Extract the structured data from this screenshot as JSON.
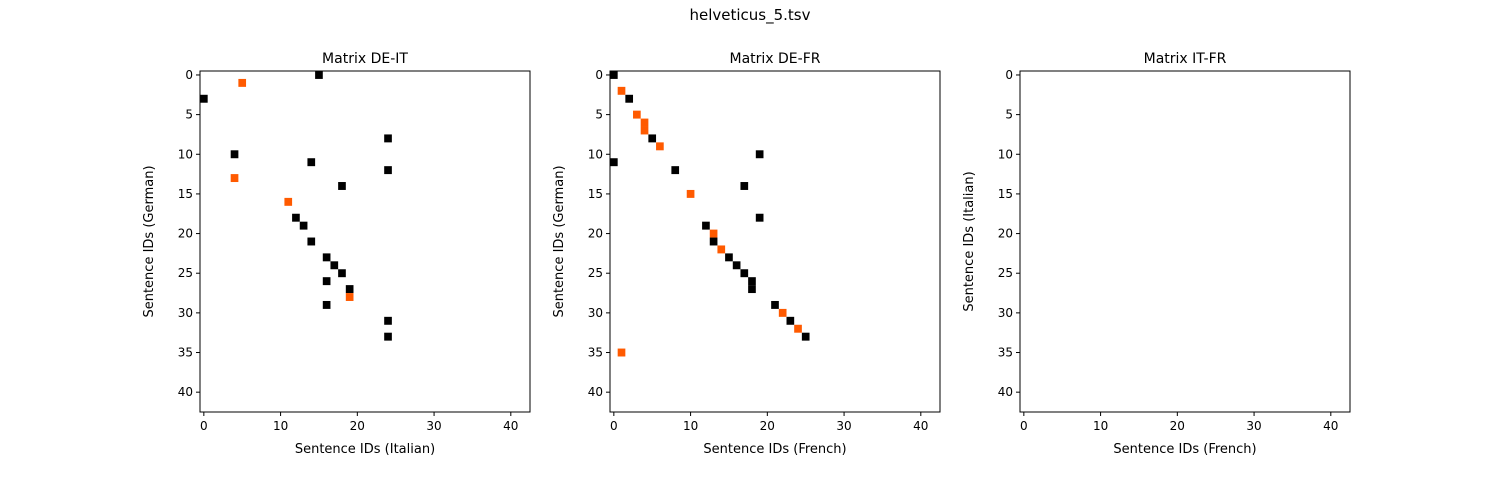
{
  "figure": {
    "title": "helveticus_5.tsv"
  },
  "colors": {
    "black": "#000000",
    "orange": "#ff5a00",
    "axis": "#000000",
    "background": "#ffffff"
  },
  "chart_data": [
    {
      "type": "scatter",
      "title": "Matrix DE-IT",
      "xlabel": "Sentence IDs (Italian)",
      "ylabel": "Sentence IDs (German)",
      "xlim": [
        -0.5,
        42.5
      ],
      "ylim": [
        42.5,
        -0.5
      ],
      "xticks": [
        0,
        10,
        20,
        30,
        40
      ],
      "yticks": [
        0,
        5,
        10,
        15,
        20,
        25,
        30,
        35,
        40
      ],
      "grid": false,
      "series": [
        {
          "color": "black",
          "points": [
            [
              15,
              0
            ],
            [
              0,
              3
            ],
            [
              24,
              8
            ],
            [
              4,
              10
            ],
            [
              14,
              11
            ],
            [
              24,
              12
            ],
            [
              18,
              14
            ],
            [
              12,
              18
            ],
            [
              13,
              19
            ],
            [
              14,
              21
            ],
            [
              16,
              23
            ],
            [
              17,
              24
            ],
            [
              18,
              25
            ],
            [
              16,
              26
            ],
            [
              19,
              27
            ],
            [
              16,
              29
            ],
            [
              24,
              31
            ],
            [
              24,
              33
            ]
          ]
        },
        {
          "color": "orange",
          "points": [
            [
              5,
              1
            ],
            [
              4,
              13
            ],
            [
              11,
              16
            ],
            [
              19,
              28
            ]
          ]
        }
      ]
    },
    {
      "type": "scatter",
      "title": "Matrix DE-FR",
      "xlabel": "Sentence IDs (French)",
      "ylabel": "Sentence IDs (German)",
      "xlim": [
        -0.5,
        42.5
      ],
      "ylim": [
        42.5,
        -0.5
      ],
      "xticks": [
        0,
        10,
        20,
        30,
        40
      ],
      "yticks": [
        0,
        5,
        10,
        15,
        20,
        25,
        30,
        35,
        40
      ],
      "grid": false,
      "series": [
        {
          "color": "black",
          "points": [
            [
              0,
              0
            ],
            [
              2,
              3
            ],
            [
              5,
              8
            ],
            [
              19,
              10
            ],
            [
              0,
              11
            ],
            [
              8,
              12
            ],
            [
              17,
              14
            ],
            [
              19,
              18
            ],
            [
              12,
              19
            ],
            [
              13,
              21
            ],
            [
              15,
              23
            ],
            [
              16,
              24
            ],
            [
              17,
              25
            ],
            [
              18,
              26
            ],
            [
              18,
              27
            ],
            [
              21,
              29
            ],
            [
              23,
              31
            ],
            [
              25,
              33
            ]
          ]
        },
        {
          "color": "orange",
          "points": [
            [
              1,
              2
            ],
            [
              3,
              5
            ],
            [
              4,
              6
            ],
            [
              4,
              7
            ],
            [
              6,
              9
            ],
            [
              10,
              15
            ],
            [
              13,
              20
            ],
            [
              14,
              22
            ],
            [
              22,
              30
            ],
            [
              24,
              32
            ],
            [
              1,
              35
            ]
          ]
        }
      ]
    },
    {
      "type": "scatter",
      "title": "Matrix IT-FR",
      "xlabel": "Sentence IDs (French)",
      "ylabel": "Sentence IDs (Italian)",
      "xlim": [
        -0.5,
        42.5
      ],
      "ylim": [
        42.5,
        -0.5
      ],
      "xticks": [
        0,
        10,
        20,
        30,
        40
      ],
      "yticks": [
        0,
        5,
        10,
        15,
        20,
        25,
        30,
        35,
        40
      ],
      "grid": false,
      "series": []
    }
  ]
}
